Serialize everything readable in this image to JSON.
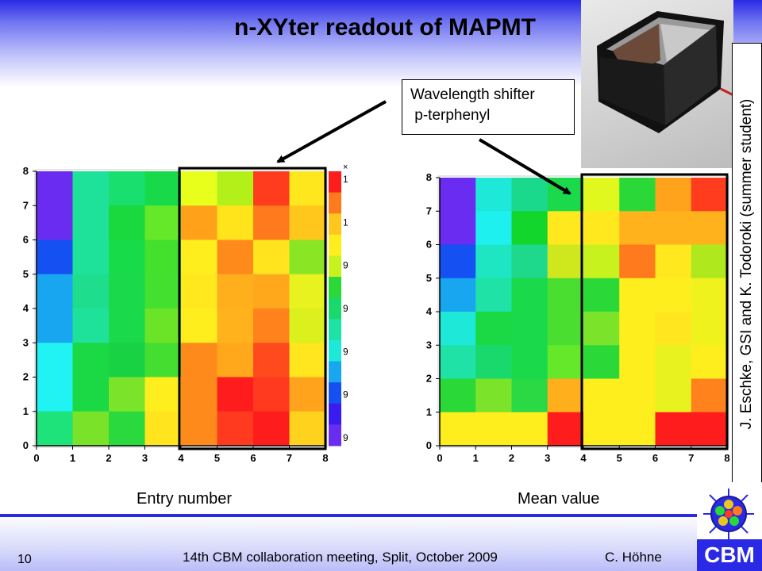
{
  "title": "n-XYter readout of MAPMT",
  "callout": {
    "line1": "Wavelength shifter",
    "line2": " p-terphenyl"
  },
  "side_credit": "J. Eschke, GSI and K. Todoroki (summer student)",
  "captions": {
    "left": "Entry number",
    "right": "Mean value"
  },
  "footer": {
    "page": "10",
    "meeting": "14th CBM collaboration meeting, Split, October 2009",
    "author": "C. Höhne"
  },
  "logo_text": "CBM",
  "heatmaps": [
    {
      "name": "entry-number",
      "x_ticks": [
        "0",
        "1",
        "2",
        "3",
        "4",
        "5",
        "6",
        "7",
        "8"
      ],
      "y_ticks": [
        "0",
        "1",
        "2",
        "3",
        "4",
        "5",
        "6",
        "7",
        "8"
      ],
      "colorbar_labels": [
        "1",
        "1",
        "9",
        "9",
        "9",
        "9",
        "9"
      ],
      "colorbar_top_label": "×",
      "highlight_columns": [
        4,
        8
      ],
      "cells_top_to_bottom": [
        [
          "#6a2cf0",
          "#1ee29a",
          "#19df6e",
          "#18d94a",
          "#e8ff1c",
          "#b3f01a",
          "#ff3c1e",
          "#ffe71e"
        ],
        [
          "#6a2cf0",
          "#1ee29a",
          "#1ad93e",
          "#66e82a",
          "#ffa21a",
          "#ffe41c",
          "#ff7a1c",
          "#ffc61c"
        ],
        [
          "#1450f2",
          "#1ee29a",
          "#17db48",
          "#44e02e",
          "#ffee1e",
          "#ff8a1c",
          "#ffe41e",
          "#8ae624"
        ],
        [
          "#18a6f0",
          "#1ede8e",
          "#1ad94a",
          "#44e030",
          "#ffe81e",
          "#ffae1c",
          "#ffa81c",
          "#e8f21e"
        ],
        [
          "#18a6f0",
          "#1ee29a",
          "#1ad94a",
          "#6be428",
          "#ffee1e",
          "#ffb21c",
          "#ff821c",
          "#dcf01e"
        ],
        [
          "#21f2f4",
          "#1ad944",
          "#18d244",
          "#44de30",
          "#ff8a1c",
          "#ffa81c",
          "#ff4a1e",
          "#ffe61e"
        ],
        [
          "#21f2f4",
          "#1ad944",
          "#7be42a",
          "#ffee1e",
          "#ff8a1c",
          "#ff1c1c",
          "#ff3a1e",
          "#ffa21c"
        ],
        [
          "#1ee27a",
          "#7be22a",
          "#2ad93e",
          "#ffe41e",
          "#ff8a1c",
          "#ff3a1e",
          "#ff1c1c",
          "#ffd21e"
        ]
      ]
    },
    {
      "name": "mean-value",
      "x_ticks": [
        "0",
        "1",
        "2",
        "3",
        "4",
        "5",
        "6",
        "7",
        "8"
      ],
      "y_ticks": [
        "0",
        "1",
        "2",
        "3",
        "4",
        "5",
        "6",
        "7",
        "8"
      ],
      "highlight_columns": [
        4,
        8
      ],
      "cells_top_to_bottom": [
        [
          "#6a2cf0",
          "#1ee8d8",
          "#1ad98c",
          "#1ad94a",
          "#e0f81e",
          "#2ad938",
          "#ffa21c",
          "#ff3c1e"
        ],
        [
          "#6a2cf0",
          "#1ef0f0",
          "#12d62c",
          "#ffe81e",
          "#ffe81e",
          "#ffb21c",
          "#ffb21c",
          "#ffb21c"
        ],
        [
          "#1450f2",
          "#1ee6c2",
          "#1ed98c",
          "#cfe81e",
          "#c8f21e",
          "#ff7a1c",
          "#ffe81e",
          "#b0e81e"
        ],
        [
          "#18a6f0",
          "#1ee2a6",
          "#1ad94a",
          "#4ade30",
          "#2ad938",
          "#ffee1e",
          "#ffee1e",
          "#f0f21e"
        ],
        [
          "#1ee8d8",
          "#1ad944",
          "#1ad94a",
          "#4ade30",
          "#7be42a",
          "#ffee1e",
          "#ffe61e",
          "#f0f21e"
        ],
        [
          "#1ee2a6",
          "#1ad96c",
          "#1ad94a",
          "#66e82a",
          "#2ad938",
          "#ffee1e",
          "#e8f21e",
          "#ffee1e"
        ],
        [
          "#2ad938",
          "#7be42a",
          "#2ad944",
          "#ffae1c",
          "#ffee1e",
          "#ffee1e",
          "#e8f21e",
          "#ff821c"
        ],
        [
          "#ffee1e",
          "#ffee1e",
          "#ffee1e",
          "#ff1c1c",
          "#ffee1e",
          "#ffee1e",
          "#ff1c1c",
          "#ff1c1c"
        ]
      ]
    }
  ]
}
